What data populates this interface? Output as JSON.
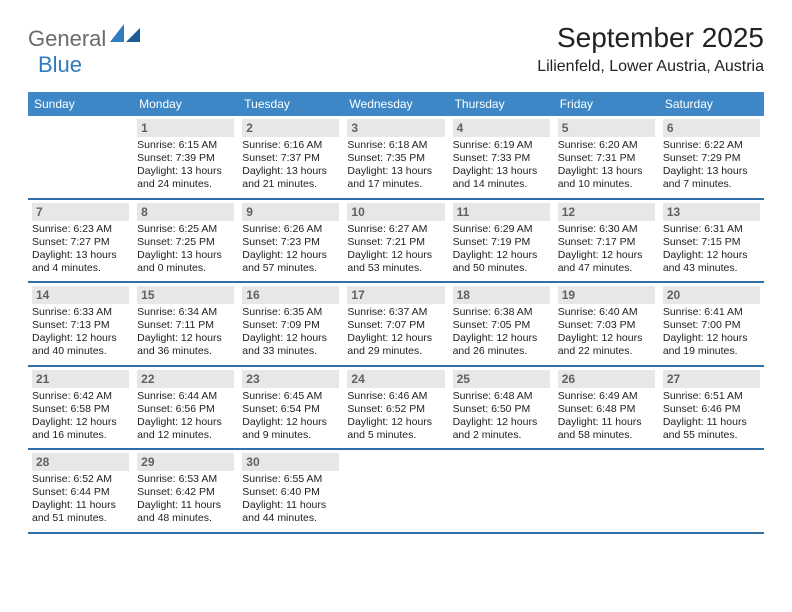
{
  "logo": {
    "part1": "General",
    "part2": "Blue",
    "color1": "#6b6b6b",
    "color2": "#2f7bbf"
  },
  "title": "September 2025",
  "location": "Lilienfeld, Lower Austria, Austria",
  "colors": {
    "header_bg": "#3d87c7",
    "header_text": "#ffffff",
    "daynum_bg": "#e7e7e7",
    "daynum_text": "#616161",
    "row_border": "#2f6fa8",
    "body_text": "#222222",
    "background": "#ffffff"
  },
  "fonts": {
    "title_size": 28,
    "location_size": 16,
    "weekday_size": 12,
    "daynum_size": 12,
    "body_size": 10.5
  },
  "weekdays": [
    "Sunday",
    "Monday",
    "Tuesday",
    "Wednesday",
    "Thursday",
    "Friday",
    "Saturday"
  ],
  "weeks": [
    [
      null,
      {
        "n": "1",
        "sr": "Sunrise: 6:15 AM",
        "ss": "Sunset: 7:39 PM",
        "d1": "Daylight: 13 hours",
        "d2": "and 24 minutes."
      },
      {
        "n": "2",
        "sr": "Sunrise: 6:16 AM",
        "ss": "Sunset: 7:37 PM",
        "d1": "Daylight: 13 hours",
        "d2": "and 21 minutes."
      },
      {
        "n": "3",
        "sr": "Sunrise: 6:18 AM",
        "ss": "Sunset: 7:35 PM",
        "d1": "Daylight: 13 hours",
        "d2": "and 17 minutes."
      },
      {
        "n": "4",
        "sr": "Sunrise: 6:19 AM",
        "ss": "Sunset: 7:33 PM",
        "d1": "Daylight: 13 hours",
        "d2": "and 14 minutes."
      },
      {
        "n": "5",
        "sr": "Sunrise: 6:20 AM",
        "ss": "Sunset: 7:31 PM",
        "d1": "Daylight: 13 hours",
        "d2": "and 10 minutes."
      },
      {
        "n": "6",
        "sr": "Sunrise: 6:22 AM",
        "ss": "Sunset: 7:29 PM",
        "d1": "Daylight: 13 hours",
        "d2": "and 7 minutes."
      }
    ],
    [
      {
        "n": "7",
        "sr": "Sunrise: 6:23 AM",
        "ss": "Sunset: 7:27 PM",
        "d1": "Daylight: 13 hours",
        "d2": "and 4 minutes."
      },
      {
        "n": "8",
        "sr": "Sunrise: 6:25 AM",
        "ss": "Sunset: 7:25 PM",
        "d1": "Daylight: 13 hours",
        "d2": "and 0 minutes."
      },
      {
        "n": "9",
        "sr": "Sunrise: 6:26 AM",
        "ss": "Sunset: 7:23 PM",
        "d1": "Daylight: 12 hours",
        "d2": "and 57 minutes."
      },
      {
        "n": "10",
        "sr": "Sunrise: 6:27 AM",
        "ss": "Sunset: 7:21 PM",
        "d1": "Daylight: 12 hours",
        "d2": "and 53 minutes."
      },
      {
        "n": "11",
        "sr": "Sunrise: 6:29 AM",
        "ss": "Sunset: 7:19 PM",
        "d1": "Daylight: 12 hours",
        "d2": "and 50 minutes."
      },
      {
        "n": "12",
        "sr": "Sunrise: 6:30 AM",
        "ss": "Sunset: 7:17 PM",
        "d1": "Daylight: 12 hours",
        "d2": "and 47 minutes."
      },
      {
        "n": "13",
        "sr": "Sunrise: 6:31 AM",
        "ss": "Sunset: 7:15 PM",
        "d1": "Daylight: 12 hours",
        "d2": "and 43 minutes."
      }
    ],
    [
      {
        "n": "14",
        "sr": "Sunrise: 6:33 AM",
        "ss": "Sunset: 7:13 PM",
        "d1": "Daylight: 12 hours",
        "d2": "and 40 minutes."
      },
      {
        "n": "15",
        "sr": "Sunrise: 6:34 AM",
        "ss": "Sunset: 7:11 PM",
        "d1": "Daylight: 12 hours",
        "d2": "and 36 minutes."
      },
      {
        "n": "16",
        "sr": "Sunrise: 6:35 AM",
        "ss": "Sunset: 7:09 PM",
        "d1": "Daylight: 12 hours",
        "d2": "and 33 minutes."
      },
      {
        "n": "17",
        "sr": "Sunrise: 6:37 AM",
        "ss": "Sunset: 7:07 PM",
        "d1": "Daylight: 12 hours",
        "d2": "and 29 minutes."
      },
      {
        "n": "18",
        "sr": "Sunrise: 6:38 AM",
        "ss": "Sunset: 7:05 PM",
        "d1": "Daylight: 12 hours",
        "d2": "and 26 minutes."
      },
      {
        "n": "19",
        "sr": "Sunrise: 6:40 AM",
        "ss": "Sunset: 7:03 PM",
        "d1": "Daylight: 12 hours",
        "d2": "and 22 minutes."
      },
      {
        "n": "20",
        "sr": "Sunrise: 6:41 AM",
        "ss": "Sunset: 7:00 PM",
        "d1": "Daylight: 12 hours",
        "d2": "and 19 minutes."
      }
    ],
    [
      {
        "n": "21",
        "sr": "Sunrise: 6:42 AM",
        "ss": "Sunset: 6:58 PM",
        "d1": "Daylight: 12 hours",
        "d2": "and 16 minutes."
      },
      {
        "n": "22",
        "sr": "Sunrise: 6:44 AM",
        "ss": "Sunset: 6:56 PM",
        "d1": "Daylight: 12 hours",
        "d2": "and 12 minutes."
      },
      {
        "n": "23",
        "sr": "Sunrise: 6:45 AM",
        "ss": "Sunset: 6:54 PM",
        "d1": "Daylight: 12 hours",
        "d2": "and 9 minutes."
      },
      {
        "n": "24",
        "sr": "Sunrise: 6:46 AM",
        "ss": "Sunset: 6:52 PM",
        "d1": "Daylight: 12 hours",
        "d2": "and 5 minutes."
      },
      {
        "n": "25",
        "sr": "Sunrise: 6:48 AM",
        "ss": "Sunset: 6:50 PM",
        "d1": "Daylight: 12 hours",
        "d2": "and 2 minutes."
      },
      {
        "n": "26",
        "sr": "Sunrise: 6:49 AM",
        "ss": "Sunset: 6:48 PM",
        "d1": "Daylight: 11 hours",
        "d2": "and 58 minutes."
      },
      {
        "n": "27",
        "sr": "Sunrise: 6:51 AM",
        "ss": "Sunset: 6:46 PM",
        "d1": "Daylight: 11 hours",
        "d2": "and 55 minutes."
      }
    ],
    [
      {
        "n": "28",
        "sr": "Sunrise: 6:52 AM",
        "ss": "Sunset: 6:44 PM",
        "d1": "Daylight: 11 hours",
        "d2": "and 51 minutes."
      },
      {
        "n": "29",
        "sr": "Sunrise: 6:53 AM",
        "ss": "Sunset: 6:42 PM",
        "d1": "Daylight: 11 hours",
        "d2": "and 48 minutes."
      },
      {
        "n": "30",
        "sr": "Sunrise: 6:55 AM",
        "ss": "Sunset: 6:40 PM",
        "d1": "Daylight: 11 hours",
        "d2": "and 44 minutes."
      },
      null,
      null,
      null,
      null
    ]
  ]
}
